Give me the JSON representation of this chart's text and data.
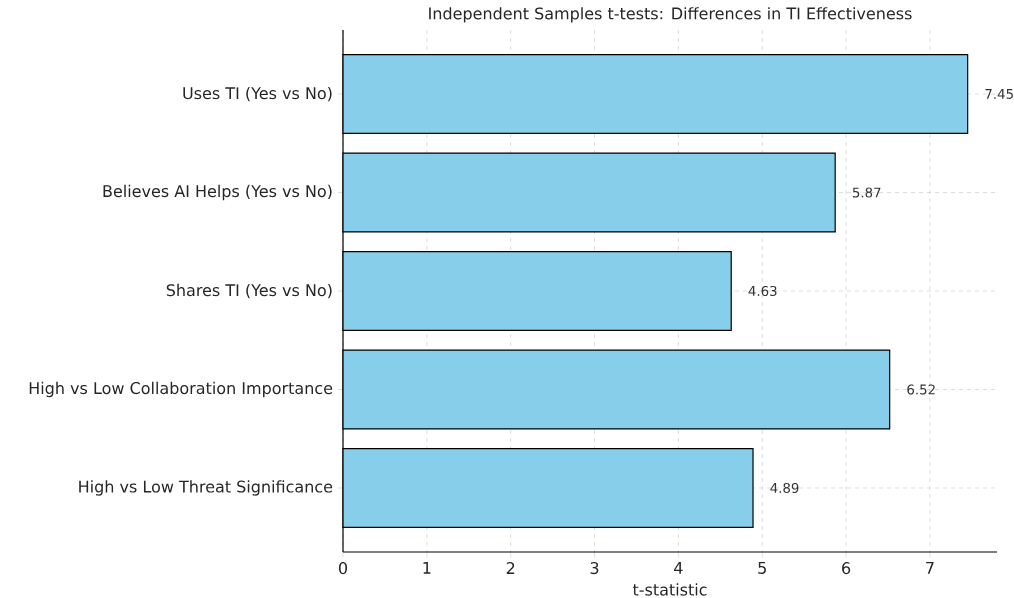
{
  "chart_data": {
    "type": "bar",
    "orientation": "horizontal",
    "title": "Independent Samples t-tests: Differences in TI Effectiveness",
    "xlabel": "t-statistic",
    "categories": [
      "Uses TI (Yes vs No)",
      "Believes AI Helps (Yes vs No)",
      "Shares TI (Yes vs No)",
      "High vs Low Collaboration Importance",
      "High vs Low Threat Significance"
    ],
    "values": [
      7.45,
      5.87,
      4.63,
      6.52,
      4.89
    ],
    "color": "#87ceeb",
    "xlim": [
      0,
      7.8
    ],
    "xticks": [
      0,
      1,
      2,
      3,
      4,
      5,
      6,
      7
    ],
    "grid": true,
    "data_labels": true
  }
}
